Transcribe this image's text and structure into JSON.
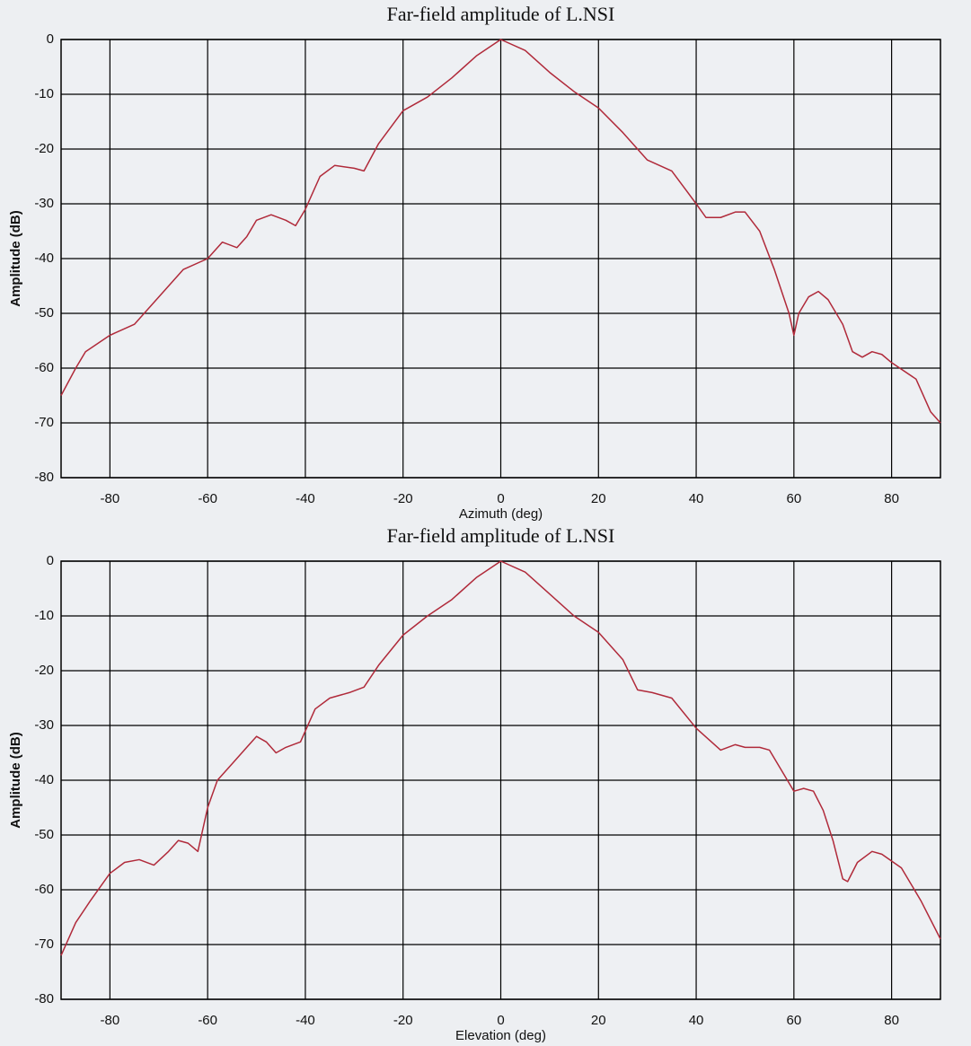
{
  "chart_data": [
    {
      "type": "line",
      "title": "Far-field amplitude of L.NSI",
      "x_label": "Azimuth (deg)",
      "y_label": "Amplitude (dB)",
      "x": [
        -90,
        -87,
        -85,
        -80,
        -75,
        -70,
        -65,
        -60,
        -57,
        -54,
        -52,
        -50,
        -47,
        -44,
        -42,
        -40,
        -37,
        -34,
        -30,
        -28,
        -25,
        -20,
        -15,
        -10,
        -5,
        0,
        5,
        10,
        15,
        20,
        25,
        30,
        35,
        40,
        42,
        45,
        48,
        50,
        53,
        56,
        59,
        60,
        61,
        63,
        65,
        67,
        70,
        72,
        74,
        76,
        78,
        80,
        85,
        88,
        90
      ],
      "series": [
        {
          "name": "L.NSI",
          "color": "#b02a3a",
          "values": [
            -65,
            -60,
            -57,
            -54,
            -52,
            -47,
            -42,
            -40,
            -37,
            -38,
            -36,
            -33,
            -32,
            -33,
            -34,
            -31,
            -25,
            -23,
            -23.5,
            -24,
            -19,
            -13,
            -10.5,
            -7,
            -3,
            0,
            -2,
            -6,
            -9.5,
            -12.5,
            -17,
            -22,
            -24,
            -30,
            -32.5,
            -32.5,
            -31.5,
            -31.5,
            -35,
            -42,
            -50,
            -54,
            -50,
            -47,
            -46,
            -47.5,
            -52,
            -57,
            -58,
            -57,
            -57.5,
            -59,
            -62,
            -68,
            -70
          ]
        }
      ],
      "xlim": [
        -90,
        90
      ],
      "xticks": [
        -80,
        -60,
        -40,
        -20,
        0,
        20,
        40,
        60,
        80
      ],
      "ylim": [
        -80,
        0
      ],
      "yticks": [
        -80,
        -70,
        -60,
        -50,
        -40,
        -30,
        -20,
        -10,
        0
      ],
      "grid": true
    },
    {
      "type": "line",
      "title": "Far-field amplitude of L.NSI",
      "x_label": "Elevation (deg)",
      "y_label": "Amplitude (dB)",
      "x": [
        -90,
        -87,
        -84,
        -80,
        -77,
        -74,
        -71,
        -68,
        -66,
        -64,
        -62,
        -60,
        -58,
        -55,
        -52,
        -50,
        -48,
        -46,
        -44,
        -41,
        -38,
        -35,
        -31,
        -28,
        -25,
        -20,
        -15,
        -10,
        -5,
        0,
        5,
        10,
        15,
        20,
        25,
        28,
        31,
        35,
        40,
        45,
        48,
        50,
        53,
        55,
        58,
        60,
        62,
        64,
        66,
        68,
        70,
        71,
        73,
        76,
        78,
        82,
        86,
        90
      ],
      "series": [
        {
          "name": "L.NSI",
          "color": "#b02a3a",
          "values": [
            -72,
            -66,
            -62,
            -57,
            -55,
            -54.5,
            -55.5,
            -53,
            -51,
            -51.5,
            -53,
            -45,
            -40,
            -37,
            -34,
            -32,
            -33,
            -35,
            -34,
            -33,
            -27,
            -25,
            -24,
            -23,
            -19,
            -13.5,
            -10,
            -7,
            -3,
            0,
            -2,
            -6,
            -10,
            -13,
            -18,
            -23.5,
            -24,
            -25,
            -30.5,
            -34.5,
            -33.5,
            -34,
            -34,
            -34.5,
            -39,
            -42,
            -41.5,
            -42,
            -45.5,
            -51,
            -58,
            -58.5,
            -55,
            -53,
            -53.5,
            -56,
            -62,
            -69
          ]
        }
      ],
      "xlim": [
        -90,
        90
      ],
      "xticks": [
        -80,
        -60,
        -40,
        -20,
        0,
        20,
        40,
        60,
        80
      ],
      "ylim": [
        -80,
        0
      ],
      "yticks": [
        -80,
        -70,
        -60,
        -50,
        -40,
        -30,
        -20,
        -10,
        0
      ],
      "grid": true
    }
  ]
}
